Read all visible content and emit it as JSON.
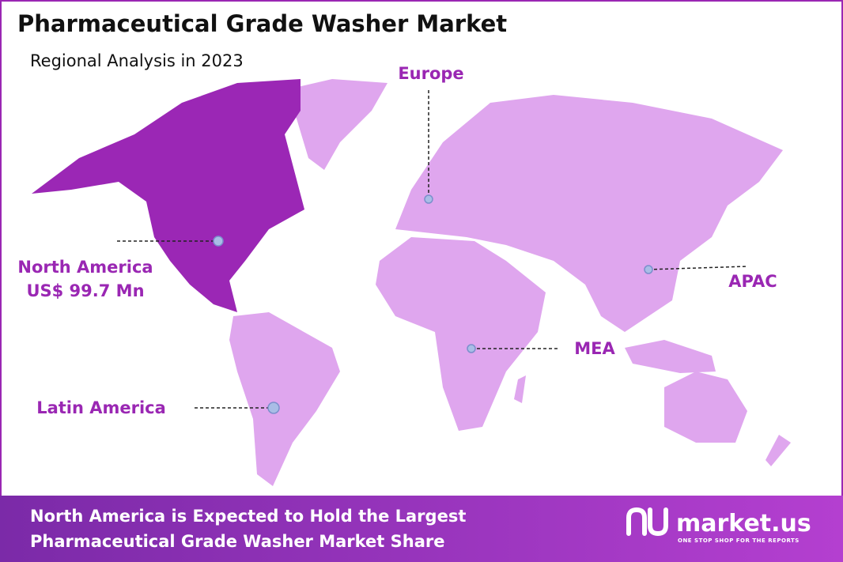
{
  "header": {
    "title": "Pharmaceutical Grade Washer Market",
    "subtitle": "Regional Analysis in 2023"
  },
  "regions": [
    {
      "label": "North America",
      "value": "US$ 99.7 Mn"
    },
    {
      "label": "Europe"
    },
    {
      "label": "APAC"
    },
    {
      "label": "MEA"
    },
    {
      "label": "Latin America"
    }
  ],
  "footer": {
    "lines": [
      "North America is Expected to Hold the Largest",
      "Pharmaceutical Grade Washer Market Share"
    ]
  },
  "logo": {
    "name": "market.us",
    "tagline": "ONE STOP SHOP FOR THE REPORTS"
  }
}
